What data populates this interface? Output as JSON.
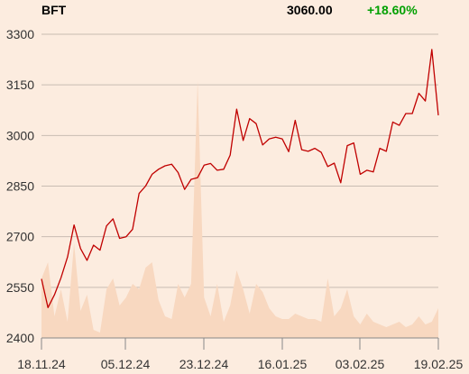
{
  "header": {
    "symbol": "BFT",
    "price": "3060.00",
    "change": "+18.60%"
  },
  "colors": {
    "background": "#fcecdf",
    "price_line": "#c00000",
    "volume_fill": "#f8d8c0",
    "change_positive": "#00a000",
    "grid": "#c9bcb2"
  },
  "chart_data": {
    "type": "line",
    "title": "",
    "xlabel": "",
    "ylabel": "",
    "ylim": [
      2400,
      3300
    ],
    "yticks": [
      2400,
      2550,
      2700,
      2850,
      3000,
      3150,
      3300
    ],
    "xtick_labels": [
      "18.11.24",
      "05.12.24",
      "23.12.24",
      "16.01.25",
      "03.02.25",
      "19.02.25"
    ],
    "grid": true,
    "series": [
      {
        "type": "line",
        "values": [
          2575,
          2490,
          2528,
          2578,
          2640,
          2735,
          2665,
          2630,
          2675,
          2660,
          2732,
          2753,
          2695,
          2700,
          2722,
          2828,
          2850,
          2885,
          2900,
          2910,
          2915,
          2890,
          2840,
          2870,
          2875,
          2912,
          2917,
          2897,
          2900,
          2942,
          3078,
          2985,
          3050,
          3035,
          2972,
          2990,
          2995,
          2990,
          2952,
          3045,
          2958,
          2953,
          2962,
          2950,
          2908,
          2918,
          2860,
          2970,
          2978,
          2885,
          2897,
          2892,
          2962,
          2953,
          3040,
          3030,
          3065,
          3065,
          3125,
          3102,
          3255,
          3060
        ]
      },
      {
        "type": "area",
        "values": [
          22,
          28,
          8,
          18,
          6,
          35,
          10,
          16,
          3,
          2,
          18,
          22,
          12,
          15,
          20,
          18,
          26,
          28,
          14,
          8,
          7,
          20,
          15,
          20,
          95,
          15,
          8,
          20,
          6,
          12,
          25,
          18,
          9,
          20,
          17,
          11,
          8,
          7,
          7,
          9,
          8,
          7,
          7,
          6,
          22,
          8,
          11,
          18,
          8,
          5,
          9,
          6,
          5,
          4,
          5,
          6,
          4,
          5,
          8,
          5,
          6,
          11
        ]
      }
    ]
  }
}
